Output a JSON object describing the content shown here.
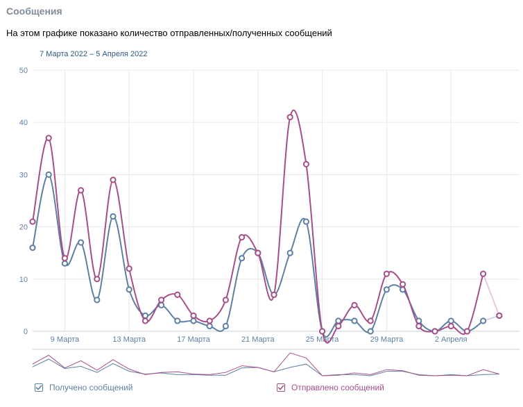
{
  "header": {
    "title": "Сообщения",
    "subtitle": "На этом графике показано количество отправленных/полученных сообщений",
    "date_range": "7 Марта 2022 – 5 Апреля 2022"
  },
  "colors": {
    "received": "#5d7fa3",
    "sent": "#a54f88",
    "grid": "#e7e8ec",
    "axis": "#5b7fa6"
  },
  "legend": [
    {
      "key": "received",
      "label": "Получено сообщений",
      "checked": true,
      "icon": "checkmark-icon"
    },
    {
      "key": "sent",
      "label": "Отправлено сообщений",
      "checked": true,
      "icon": "checkmark-icon"
    }
  ],
  "chart_data": {
    "type": "line",
    "title": "",
    "xlabel": "",
    "ylabel": "",
    "ylim": [
      0,
      50
    ],
    "yticks": [
      0,
      10,
      20,
      30,
      40,
      50
    ],
    "x": [
      "7 Марта",
      "8 Марта",
      "9 Марта",
      "10 Марта",
      "11 Марта",
      "12 Марта",
      "13 Марта",
      "14 Марта",
      "15 Марта",
      "16 Марта",
      "17 Марта",
      "18 Марта",
      "19 Марта",
      "20 Марта",
      "21 Марта",
      "22 Марта",
      "23 Марта",
      "24 Марта",
      "25 Марта",
      "26 Марта",
      "27 Марта",
      "28 Марта",
      "29 Марта",
      "30 Марта",
      "31 Марта",
      "1 Апреля",
      "2 Апреля",
      "3 Апреля",
      "4 Апреля",
      "5 Апреля"
    ],
    "xtick_labels": [
      "9 Марта",
      "13 Марта",
      "17 Марта",
      "21 Марта",
      "25 Марта",
      "29 Марта",
      "2 Апреля"
    ],
    "grid": true,
    "legend_position": "bottom",
    "series": [
      {
        "name": "Получено сообщений",
        "values": [
          16,
          30,
          13,
          17,
          6,
          22,
          8,
          3,
          5,
          2,
          2,
          1,
          1,
          14,
          15,
          7,
          15,
          21,
          0,
          2,
          2,
          0,
          8,
          8,
          2,
          0,
          2,
          0,
          2,
          3
        ]
      },
      {
        "name": "Отправлено сообщений",
        "values": [
          21,
          37,
          14,
          27,
          10,
          29,
          12,
          2,
          6,
          7,
          3,
          2,
          6,
          18,
          15,
          7,
          41,
          32,
          0,
          1,
          5,
          2,
          11,
          9,
          1,
          0,
          1,
          0,
          11,
          3
        ]
      }
    ]
  }
}
